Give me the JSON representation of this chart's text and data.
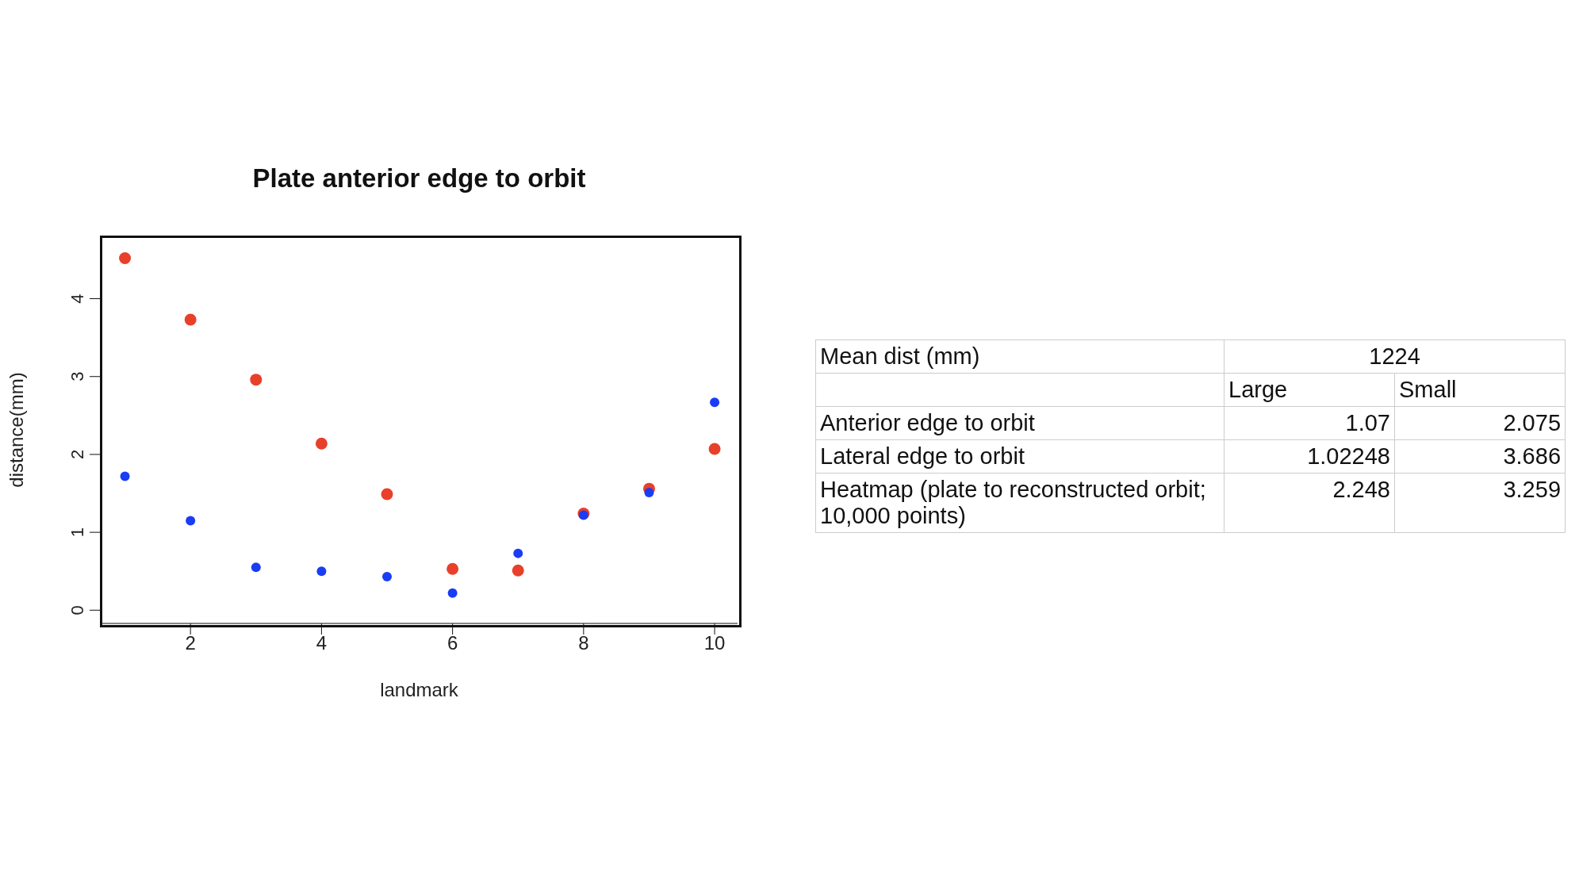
{
  "chart_data": [
    {
      "type": "scatter",
      "title": "Plate anterior edge to orbit",
      "xlabel": "landmark",
      "ylabel": "distance(mm)",
      "x": [
        1,
        2,
        3,
        4,
        5,
        6,
        7,
        8,
        9,
        10
      ],
      "series": [
        {
          "color": "#e8402a",
          "values": [
            4.52,
            3.73,
            2.96,
            2.14,
            1.49,
            0.53,
            0.51,
            1.24,
            1.56,
            2.07
          ]
        },
        {
          "color": "#1a3cf5",
          "values": [
            1.72,
            1.15,
            0.55,
            0.5,
            0.43,
            0.22,
            0.73,
            1.22,
            1.51,
            2.67
          ]
        }
      ],
      "xlim": [
        0.63,
        10.35
      ],
      "ylim": [
        -0.17,
        4.8
      ],
      "xticks": [
        2,
        4,
        6,
        8,
        10
      ],
      "yticks": [
        0,
        1,
        2,
        3,
        4
      ],
      "marker": "circle",
      "grid": false,
      "legend": false
    },
    {
      "type": "other",
      "annotations": [
        "Mean dist (mm)",
        "1224",
        "Large",
        "Small",
        "Anterior edge to orbit",
        "1.07",
        "2.075",
        "Lateral edge to orbit",
        "1.02248",
        "3.686",
        "Heatmap (plate to reconstructed orbit; 10,000 points)",
        "2.248",
        "3.259"
      ]
    }
  ]
}
